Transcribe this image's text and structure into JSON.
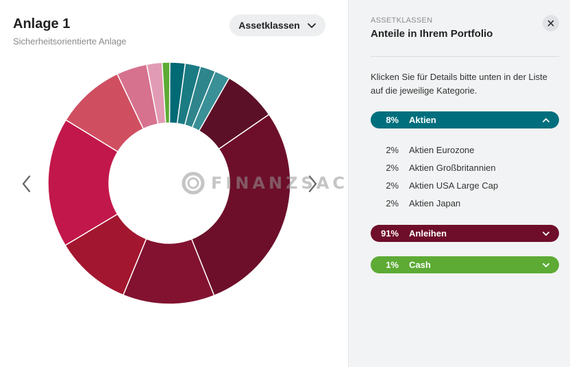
{
  "left": {
    "title": "Anlage 1",
    "subtitle": "Sicherheitsorientierte Anlage",
    "dropdown_label": "Assetklassen",
    "watermark_text": "FINANZSACHE"
  },
  "chart_data": {
    "type": "pie",
    "donut": true,
    "segments": [
      {
        "value": 2,
        "color": "#006a75"
      },
      {
        "value": 2,
        "color": "#1b7b83"
      },
      {
        "value": 2,
        "color": "#2e858b"
      },
      {
        "value": 2,
        "color": "#3a9097"
      },
      {
        "value": 7,
        "color": "#5c1027"
      },
      {
        "value": 28,
        "color": "#6d0f2a"
      },
      {
        "value": 12,
        "color": "#821230"
      },
      {
        "value": 10,
        "color": "#a3162f"
      },
      {
        "value": 17,
        "color": "#c2174a"
      },
      {
        "value": 9,
        "color": "#cf4f61"
      },
      {
        "value": 4,
        "color": "#d6728e"
      },
      {
        "value": 2,
        "color": "#e29bb4"
      },
      {
        "value": 1,
        "color": "#5dab35"
      }
    ]
  },
  "panel": {
    "eyebrow": "ASSETKLASSEN",
    "title": "Anteile in Ihrem Portfolio",
    "hint": "Klicken Sie für Details bitte unten in der Liste auf die jeweilige Kategorie.",
    "categories": [
      {
        "pct": "8%",
        "name": "Aktien",
        "color": "#006f7d",
        "expanded": true
      },
      {
        "pct": "91%",
        "name": "Anleihen",
        "color": "#6e0e2b",
        "expanded": false
      },
      {
        "pct": "1%",
        "name": "Cash",
        "color": "#5dab35",
        "expanded": false
      }
    ],
    "aktien_items": [
      {
        "pct": "2%",
        "name": "Aktien Eurozone"
      },
      {
        "pct": "2%",
        "name": "Aktien Großbritannien"
      },
      {
        "pct": "2%",
        "name": "Aktien USA Large Cap"
      },
      {
        "pct": "2%",
        "name": "Aktien Japan"
      }
    ]
  }
}
